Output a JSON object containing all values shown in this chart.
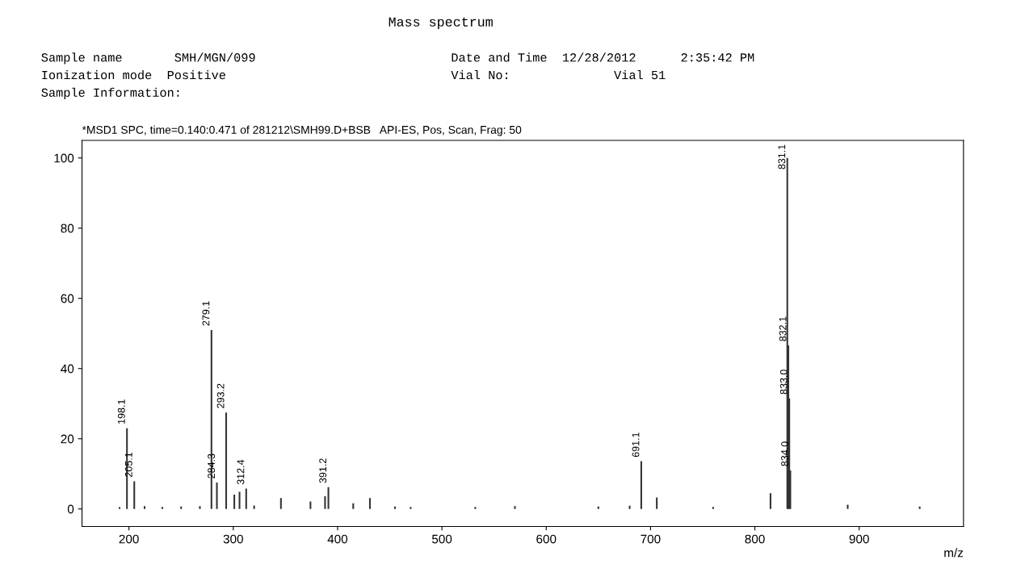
{
  "chart_data": {
    "type": "bar",
    "title": "*MSD1 SPC, time=0.140:0.471 of 281212\\SMH99.D+BSB   API-ES, Pos, Scan, Frag: 50",
    "subtitle": "Mass spectrum",
    "xlabel": "m/z",
    "x": [
      191,
      198.1,
      205.1,
      215,
      232,
      250,
      268,
      279.1,
      284.3,
      293.2,
      301,
      306,
      312.4,
      320,
      345.7,
      374,
      388,
      391.2,
      415,
      431,
      455,
      470,
      532,
      570,
      650,
      680,
      691.1,
      706,
      760,
      815,
      831.1,
      832.1,
      833.0,
      834.0,
      889,
      958
    ],
    "values": [
      0.5,
      23,
      7.9,
      0.8,
      0.6,
      0.7,
      0.8,
      51,
      7.5,
      27.5,
      4.1,
      4.9,
      5.8,
      1.0,
      3.1,
      2.1,
      3.6,
      6.2,
      1.6,
      3.1,
      0.7,
      0.6,
      0.6,
      0.8,
      0.7,
      0.9,
      13.6,
      3.3,
      0.6,
      4.5,
      100,
      46.6,
      31.5,
      11,
      1.2,
      0.7
    ],
    "color": "#333333",
    "xlim": [
      155,
      1000
    ],
    "xticks": [
      200,
      300,
      400,
      500,
      600,
      700,
      800,
      900
    ],
    "ylim": [
      -5,
      105
    ],
    "yticks": [
      0,
      20,
      40,
      60,
      80,
      100
    ],
    "grid": false,
    "annotations": [
      "Sample name       SMH/MGN/099",
      "Ionization mode  Positive",
      "Sample Information:",
      "Date and Time  12/28/2012      2:35:42 PM",
      "Vial No:              Vial 51",
      {
        "text": "198.1",
        "x": 198.1,
        "y": 23
      },
      {
        "text": "205.1",
        "x": 205.1,
        "y": 7.9
      },
      {
        "text": "279.1",
        "x": 279.1,
        "y": 51
      },
      {
        "text": "284.3",
        "x": 284.3,
        "y": 7.5
      },
      {
        "text": "293.2",
        "x": 293.2,
        "y": 27.5
      },
      {
        "text": "312.4",
        "x": 312.4,
        "y": 5.8
      },
      {
        "text": "391.2",
        "x": 391.2,
        "y": 6.2
      },
      {
        "text": "691.1",
        "x": 691.1,
        "y": 13.6
      },
      {
        "text": "831.1",
        "x": 831.1,
        "y": 100
      },
      {
        "text": "832.1",
        "x": 832.1,
        "y": 46.6
      },
      {
        "text": "833.0",
        "x": 833.0,
        "y": 31.5
      },
      {
        "text": "834.0",
        "x": 834.0,
        "y": 11
      }
    ]
  }
}
